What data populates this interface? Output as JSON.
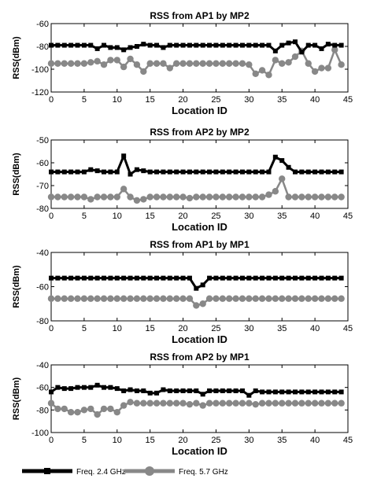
{
  "colors": {
    "s1": "#000000",
    "s2": "#888888",
    "axis": "#000000",
    "background": "#ffffff"
  },
  "legend": {
    "placement": "bottom",
    "entries": [
      {
        "label": "Freq. 2.4 GHz",
        "color": "#000000",
        "marker": "square"
      },
      {
        "label": "Freq. 5.7 GHz",
        "color": "#888888",
        "marker": "circle"
      }
    ]
  },
  "chart_data": [
    {
      "type": "line",
      "title": "RSS from AP1 by MP2",
      "xlabel": "Location ID",
      "ylabel": "RSS(dBm)",
      "xlim": [
        0,
        45
      ],
      "ylim": [
        -120,
        -60
      ],
      "xticks": [
        0,
        5,
        10,
        15,
        20,
        25,
        30,
        35,
        40,
        45
      ],
      "yticks": [
        -120,
        -100,
        -80,
        -60
      ],
      "grid": false,
      "x": [
        0,
        1,
        2,
        3,
        4,
        5,
        6,
        7,
        8,
        9,
        10,
        11,
        12,
        13,
        14,
        15,
        16,
        17,
        18,
        19,
        20,
        21,
        22,
        23,
        24,
        25,
        26,
        27,
        28,
        29,
        30,
        31,
        32,
        33,
        34,
        35,
        36,
        37,
        38,
        39,
        40,
        41,
        42,
        43,
        44
      ],
      "series": [
        {
          "name": "Freq. 2.4 GHz",
          "values": [
            -79,
            -79,
            -79,
            -79,
            -79,
            -79,
            -79,
            -82,
            -79,
            -81,
            -81,
            -83,
            -81,
            -80,
            -78,
            -79,
            -79,
            -81,
            -79,
            -79,
            -79,
            -79,
            -79,
            -79,
            -79,
            -79,
            -79,
            -79,
            -79,
            -79,
            -79,
            -79,
            -79,
            -79,
            -84,
            -79,
            -77,
            -76,
            -85,
            -79,
            -79,
            -82,
            -78,
            -79,
            -79
          ]
        },
        {
          "name": "Freq. 5.7 GHz",
          "values": [
            -95,
            -95,
            -95,
            -95,
            -95,
            -95,
            -94,
            -93,
            -96,
            -92,
            -92,
            -98,
            -91,
            -96,
            -102,
            -95,
            -95,
            -95,
            -99,
            -95,
            -95,
            -95,
            -95,
            -95,
            -95,
            -95,
            -95,
            -95,
            -95,
            -95,
            -96,
            -104,
            -101,
            -105,
            -92,
            -95,
            -94,
            -89,
            -84,
            -95,
            -102,
            -99,
            -99,
            -83,
            -96
          ]
        }
      ]
    },
    {
      "type": "line",
      "title": "RSS from AP2 by MP2",
      "xlabel": "Location ID",
      "ylabel": "RSS(dBm)",
      "xlim": [
        0,
        45
      ],
      "ylim": [
        -80,
        -50
      ],
      "xticks": [
        0,
        5,
        10,
        15,
        20,
        25,
        30,
        35,
        40,
        45
      ],
      "yticks": [
        -80,
        -70,
        -60,
        -50
      ],
      "grid": false,
      "x": [
        0,
        1,
        2,
        3,
        4,
        5,
        6,
        7,
        8,
        9,
        10,
        11,
        12,
        13,
        14,
        15,
        16,
        17,
        18,
        19,
        20,
        21,
        22,
        23,
        24,
        25,
        26,
        27,
        28,
        29,
        30,
        31,
        32,
        33,
        34,
        35,
        36,
        37,
        38,
        39,
        40,
        41,
        42,
        43,
        44
      ],
      "series": [
        {
          "name": "Freq. 2.4 GHz",
          "values": [
            -64,
            -64,
            -64,
            -64,
            -64,
            -64,
            -63,
            -63.5,
            -64,
            -64,
            -64,
            -57,
            -65,
            -63,
            -63.5,
            -64,
            -64,
            -64,
            -64,
            -64,
            -64,
            -64,
            -64,
            -64,
            -64,
            -64,
            -64,
            -64,
            -64,
            -64,
            -64,
            -64,
            -64,
            -64,
            -57.5,
            -59,
            -62,
            -64,
            -64,
            -64,
            -64,
            -64,
            -64,
            -64,
            -64
          ]
        },
        {
          "name": "Freq. 5.7 GHz",
          "values": [
            -75,
            -75,
            -75,
            -75,
            -75,
            -75,
            -76,
            -75,
            -75,
            -75,
            -75,
            -71.5,
            -75,
            -76.5,
            -76,
            -75,
            -75,
            -75,
            -75,
            -75,
            -75,
            -75.5,
            -75,
            -75,
            -75,
            -75,
            -75,
            -75,
            -75,
            -75,
            -75,
            -75,
            -75,
            -74,
            -72.5,
            -67,
            -75,
            -75,
            -75,
            -75,
            -75,
            -75,
            -75,
            -75,
            -75
          ]
        }
      ]
    },
    {
      "type": "line",
      "title": "RSS from AP1 by MP1",
      "xlabel": "Location ID",
      "ylabel": "RSS(dBm)",
      "xlim": [
        0,
        45
      ],
      "ylim": [
        -80,
        -40
      ],
      "xticks": [
        0,
        5,
        10,
        15,
        20,
        25,
        30,
        35,
        40,
        45
      ],
      "yticks": [
        -80,
        -60,
        -40
      ],
      "grid": false,
      "x": [
        0,
        1,
        2,
        3,
        4,
        5,
        6,
        7,
        8,
        9,
        10,
        11,
        12,
        13,
        14,
        15,
        16,
        17,
        18,
        19,
        20,
        21,
        22,
        23,
        24,
        25,
        26,
        27,
        28,
        29,
        30,
        31,
        32,
        33,
        34,
        35,
        36,
        37,
        38,
        39,
        40,
        41,
        42,
        43,
        44
      ],
      "series": [
        {
          "name": "Freq. 2.4 GHz",
          "values": [
            -55,
            -55,
            -55,
            -55,
            -55,
            -55,
            -55,
            -55,
            -55,
            -55,
            -55,
            -55,
            -55,
            -55,
            -55,
            -55,
            -55,
            -55,
            -55,
            -55,
            -55,
            -55,
            -61,
            -59,
            -55,
            -55,
            -55,
            -55,
            -55,
            -55,
            -55,
            -55,
            -55,
            -55,
            -55,
            -55,
            -55,
            -55,
            -55,
            -55,
            -55,
            -55,
            -55,
            -55,
            -55
          ]
        },
        {
          "name": "Freq. 5.7 GHz",
          "values": [
            -67,
            -67,
            -67,
            -67,
            -67,
            -67,
            -67,
            -67,
            -67,
            -67,
            -67,
            -67,
            -67,
            -67,
            -67,
            -67,
            -67,
            -67,
            -67,
            -67,
            -67,
            -67,
            -71,
            -70,
            -67,
            -67,
            -67,
            -67,
            -67,
            -67,
            -67,
            -67,
            -67,
            -67,
            -67,
            -67,
            -67,
            -67,
            -67,
            -67,
            -67,
            -67,
            -67,
            -67,
            -67
          ]
        }
      ]
    },
    {
      "type": "line",
      "title": "RSS from AP2 by MP1",
      "xlabel": "Location ID",
      "ylabel": "RSS(dBm)",
      "xlim": [
        0,
        45
      ],
      "ylim": [
        -100,
        -40
      ],
      "xticks": [
        0,
        5,
        10,
        15,
        20,
        25,
        30,
        35,
        40,
        45
      ],
      "yticks": [
        -100,
        -80,
        -60,
        -40
      ],
      "grid": false,
      "x": [
        0,
        1,
        2,
        3,
        4,
        5,
        6,
        7,
        8,
        9,
        10,
        11,
        12,
        13,
        14,
        15,
        16,
        17,
        18,
        19,
        20,
        21,
        22,
        23,
        24,
        25,
        26,
        27,
        28,
        29,
        30,
        31,
        32,
        33,
        34,
        35,
        36,
        37,
        38,
        39,
        40,
        41,
        42,
        43,
        44
      ],
      "series": [
        {
          "name": "Freq. 2.4 GHz",
          "values": [
            -64,
            -60,
            -61,
            -61,
            -60,
            -60,
            -60,
            -58,
            -60,
            -60,
            -61,
            -63,
            -62,
            -63,
            -63,
            -65,
            -65,
            -62,
            -63,
            -63,
            -63,
            -63,
            -63,
            -66,
            -63,
            -63,
            -63,
            -63,
            -63,
            -63,
            -67,
            -63,
            -64,
            -64,
            -64,
            -64,
            -64,
            -64,
            -64,
            -64,
            -64,
            -64,
            -64,
            -64,
            -64
          ]
        },
        {
          "name": "Freq. 5.7 GHz",
          "values": [
            -74,
            -79,
            -79,
            -82,
            -82,
            -80,
            -79,
            -84,
            -79,
            -79,
            -82,
            -76,
            -73,
            -74,
            -74,
            -74,
            -74,
            -74,
            -74,
            -74,
            -74,
            -75,
            -74,
            -76,
            -74,
            -74,
            -74,
            -74,
            -74,
            -74,
            -74,
            -75,
            -74,
            -74,
            -74,
            -74,
            -74,
            -74,
            -74,
            -74,
            -74,
            -74,
            -74,
            -74,
            -74
          ]
        }
      ]
    }
  ]
}
